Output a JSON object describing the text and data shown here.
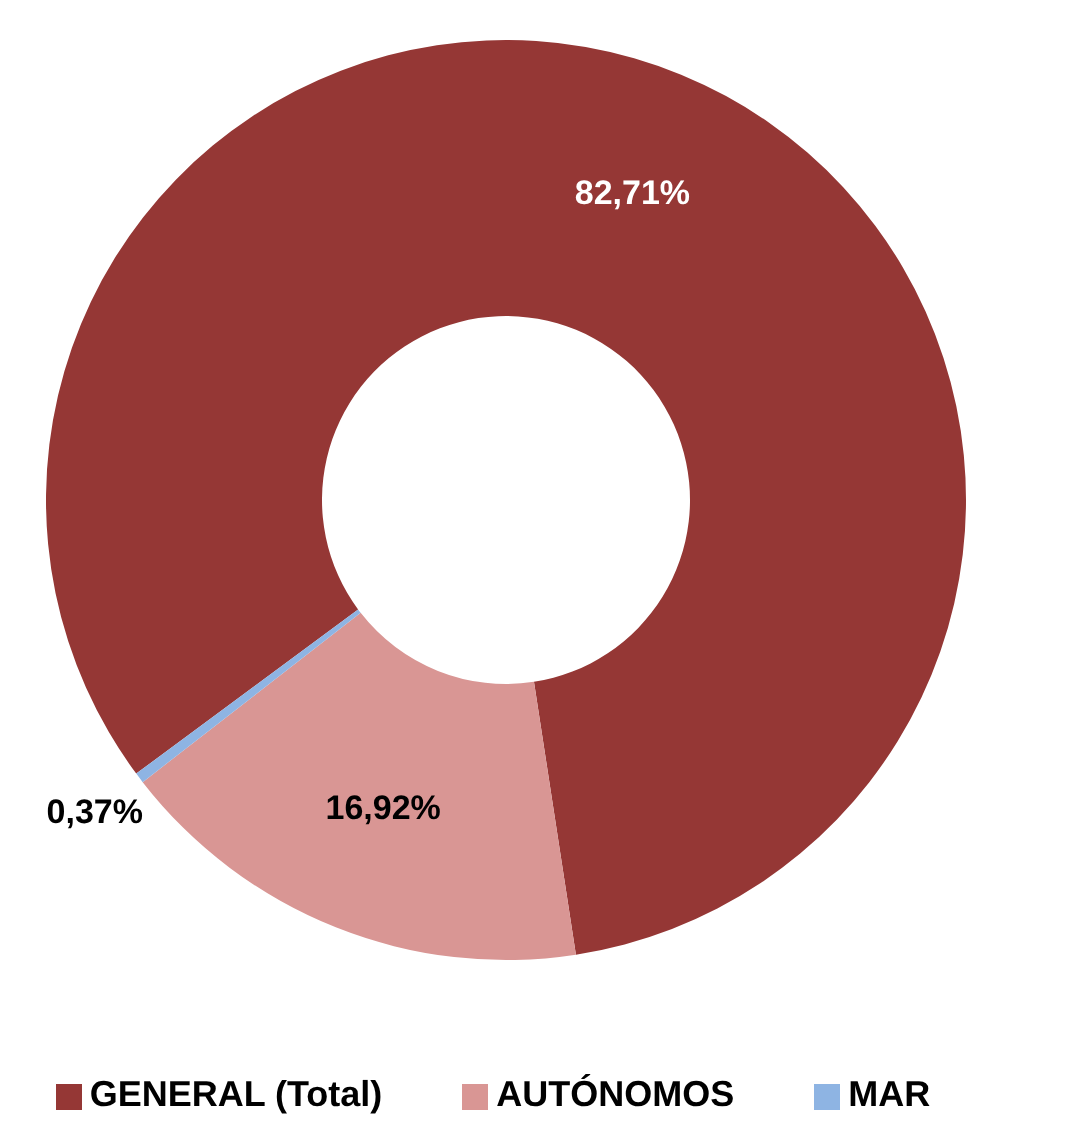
{
  "chart_data": {
    "type": "donut",
    "categories": [
      "GENERAL (Total)",
      "AUTÓNOMOS",
      "MAR"
    ],
    "values": [
      82.71,
      16.92,
      0.37
    ],
    "colors": [
      "#953735",
      "#d99694",
      "#8eb4e3"
    ],
    "value_labels": [
      "82,71%",
      "16,92%",
      "0,37%"
    ],
    "legend": "bottom"
  }
}
